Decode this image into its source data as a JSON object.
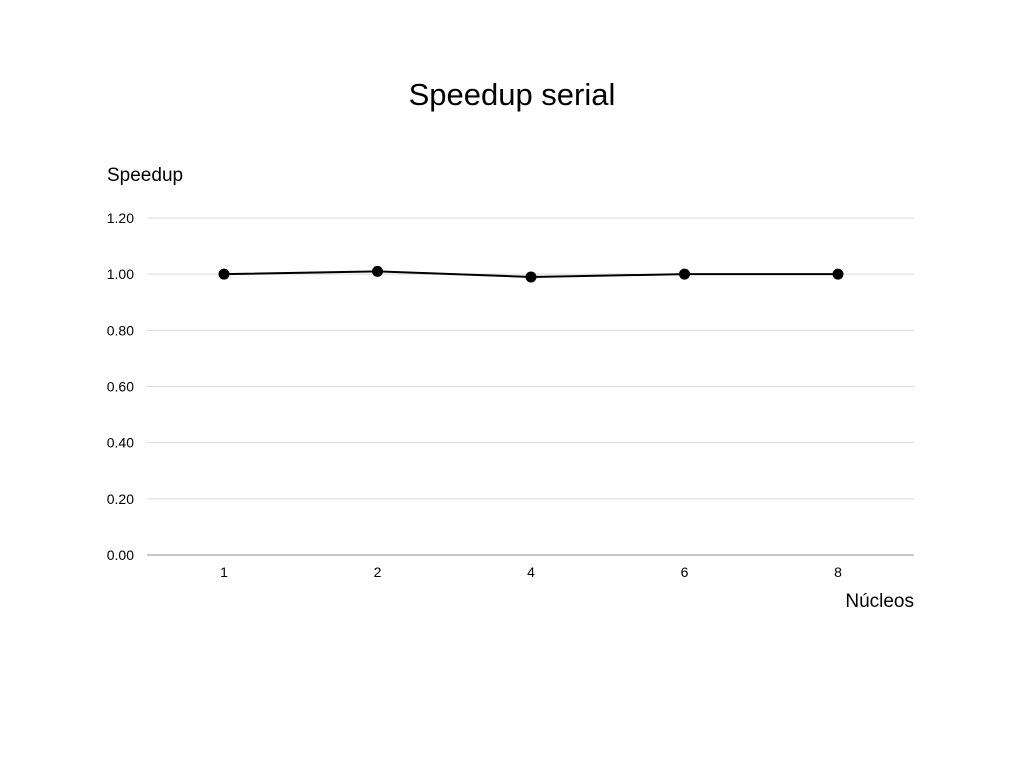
{
  "chart_data": {
    "type": "line",
    "title": "Speedup serial",
    "xlabel": "Núcleos",
    "ylabel": "Speedup",
    "categories": [
      "1",
      "2",
      "4",
      "6",
      "8"
    ],
    "series": [
      {
        "values": [
          1.0,
          1.01,
          0.99,
          1.0,
          1.0
        ]
      }
    ],
    "ylim": [
      0,
      1.2
    ],
    "yticks": [
      "0.00",
      "0.20",
      "0.40",
      "0.60",
      "0.80",
      "1.00",
      "1.20"
    ],
    "grid": true,
    "legend": "none",
    "colors": {
      "line": "#000000",
      "grid": "#d9d9d9",
      "baseline": "#a6a6a6"
    }
  }
}
